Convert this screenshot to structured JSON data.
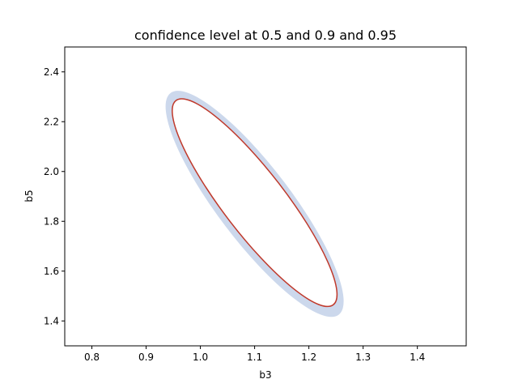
{
  "chart_data": {
    "type": "contour",
    "title": "confidence level at 0.5 and 0.9 and 0.95",
    "xlabel": "b3",
    "ylabel": "b5",
    "xlim": [
      0.75,
      1.49
    ],
    "ylim": [
      1.3,
      2.5
    ],
    "xticks": [
      0.8,
      0.9,
      1.0,
      1.1,
      1.2,
      1.3,
      1.4
    ],
    "xtick_labels": [
      "0.8",
      "0.9",
      "1.0",
      "1.1",
      "1.2",
      "1.3",
      "1.4"
    ],
    "yticks": [
      1.4,
      1.6,
      1.8,
      2.0,
      2.2,
      2.4
    ],
    "ytick_labels": [
      "1.4",
      "1.6",
      "1.8",
      "2.0",
      "2.2",
      "2.4"
    ],
    "grid": false,
    "contours": [
      {
        "level": 0.95,
        "style": "filled band",
        "color": "#ccd8ec",
        "center": [
          1.1,
          1.87
        ],
        "major_axis_endpoints": [
          [
            0.945,
            2.315
          ],
          [
            1.255,
            1.425
          ]
        ],
        "half_minor": 0.085
      },
      {
        "level": 0.9,
        "style": "line",
        "color": "#c0392b",
        "center": [
          1.1,
          1.875
        ],
        "major_axis_endpoints": [
          [
            0.955,
            2.285
          ],
          [
            1.245,
            1.465
          ]
        ],
        "half_minor": 0.072
      }
    ]
  }
}
